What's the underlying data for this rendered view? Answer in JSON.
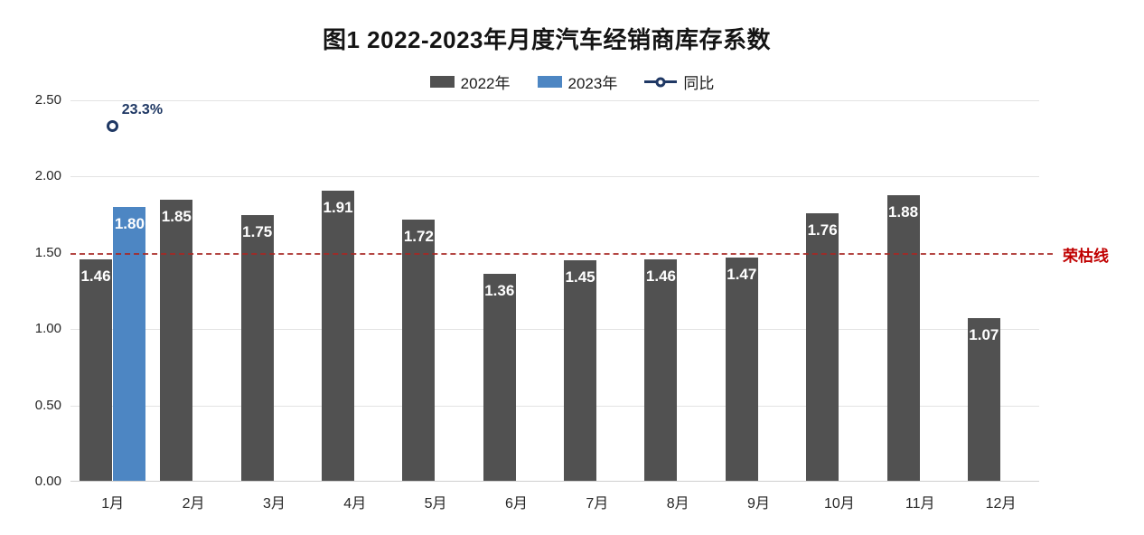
{
  "title": "图1  2022-2023年月度汽车经销商库存系数",
  "legend": {
    "items": [
      {
        "label": "2022年",
        "color": "#515151",
        "marker": "bar-swatch"
      },
      {
        "label": "2023年",
        "color": "#4d86c3",
        "marker": "bar-swatch"
      },
      {
        "label": "同比",
        "color": "#1f3864",
        "marker": "line-circle"
      }
    ]
  },
  "chart_data": {
    "type": "bar",
    "title": "图1  2022-2023年月度汽车经销商库存系数",
    "categories": [
      "1月",
      "2月",
      "3月",
      "4月",
      "5月",
      "6月",
      "7月",
      "8月",
      "9月",
      "10月",
      "11月",
      "12月"
    ],
    "series": [
      {
        "name": "2022年",
        "type": "bar",
        "color": "#515151",
        "values": [
          1.46,
          1.85,
          1.75,
          1.91,
          1.72,
          1.36,
          1.45,
          1.46,
          1.47,
          1.76,
          1.88,
          1.07
        ]
      },
      {
        "name": "2023年",
        "type": "bar",
        "color": "#4d86c3",
        "values": [
          1.8,
          null,
          null,
          null,
          null,
          null,
          null,
          null,
          null,
          null,
          null,
          null
        ]
      }
    ],
    "yoy": {
      "name": "同比",
      "type": "scatter",
      "category": "1月",
      "category_index": 0,
      "label": "23.3%",
      "plotted_value": 2.33,
      "color": "#1f3864"
    },
    "reference_line": {
      "value": 1.5,
      "label": "荣枯线",
      "color": "#c00000",
      "style": "dashed"
    },
    "ylim": [
      0,
      2.5
    ],
    "yticks": [
      "2.50",
      "2.00",
      "1.50",
      "1.00",
      "0.50",
      "0.00"
    ],
    "grid": "horizontal",
    "legend_position": "top-center",
    "value_labels": "inside-top-white-bold"
  }
}
